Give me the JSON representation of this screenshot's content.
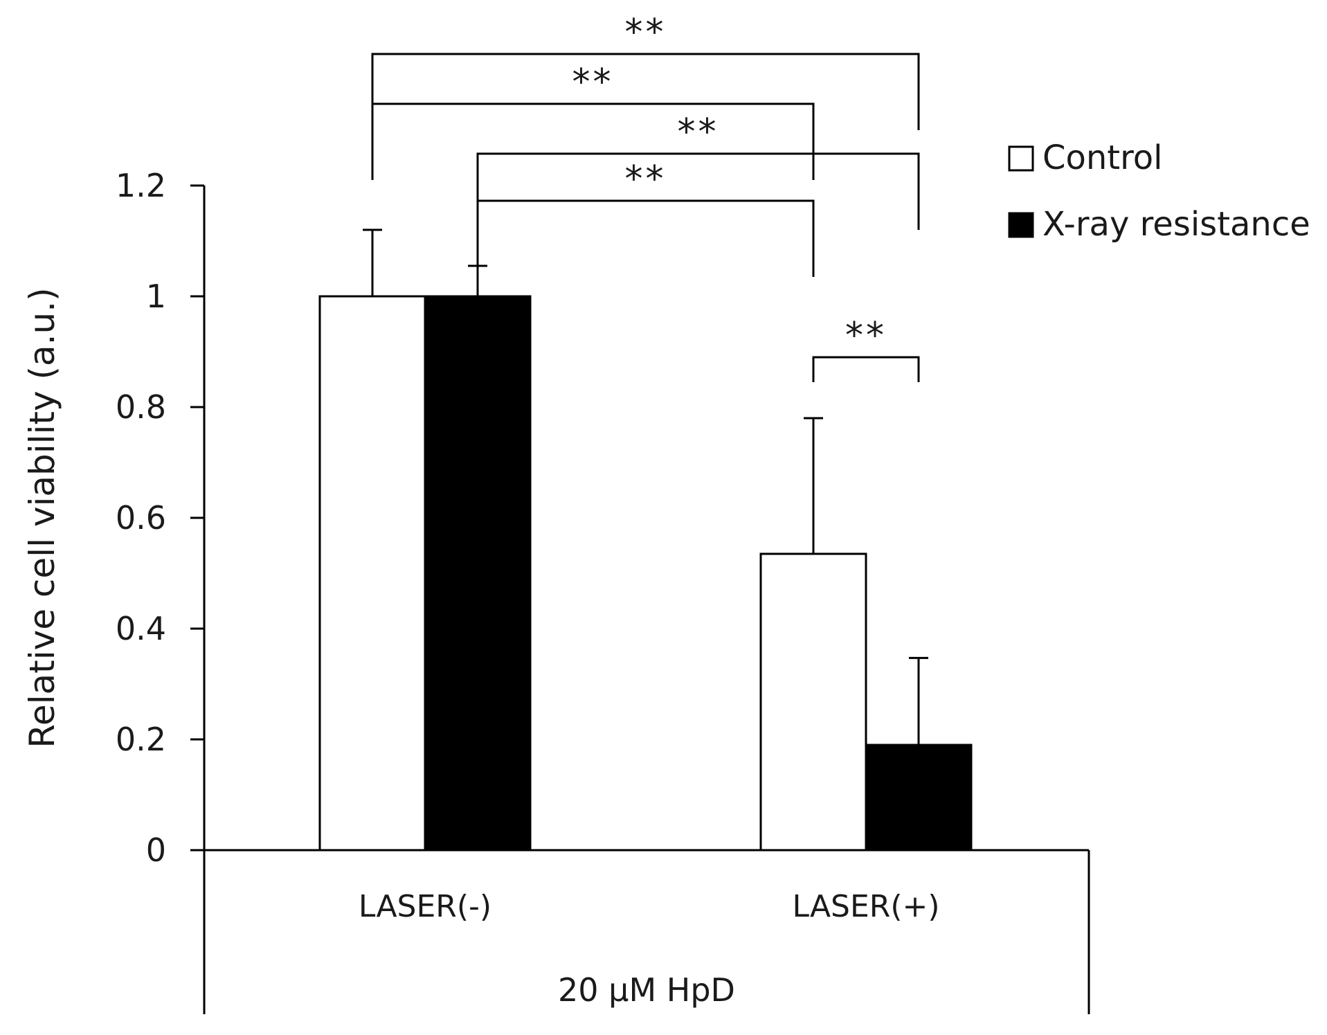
{
  "chart_data": {
    "type": "bar",
    "title": "",
    "ylabel": "Relative cell viability (a.u.)",
    "xlabel": "20 μM HpD",
    "ylim": [
      0,
      1.2
    ],
    "yticks": [
      0,
      0.2,
      0.4,
      0.6,
      0.8,
      1,
      1.2
    ],
    "ytick_labels": [
      "0",
      "0.2",
      "0.4",
      "0.6",
      "0.8",
      "1",
      "1.2"
    ],
    "categories": [
      "LASER(-)",
      "LASER(+)"
    ],
    "group_label": "20 μM HpD",
    "series": [
      {
        "name": "Control",
        "color": "#ffffff",
        "values": [
          1.0,
          0.535
        ],
        "errors": [
          0.12,
          0.245
        ]
      },
      {
        "name": "X-ray resistance",
        "color": "#000000",
        "values": [
          1.0,
          0.19
        ],
        "errors": [
          0.055,
          0.157
        ]
      }
    ],
    "legend": {
      "position": "top-right",
      "items": [
        {
          "label": "Control",
          "color": "#ffffff"
        },
        {
          "label": "X-ray resistance",
          "color": "#000000"
        }
      ]
    },
    "significance": [
      {
        "from": [
          0,
          0
        ],
        "to": [
          1,
          1
        ],
        "label": "**"
      },
      {
        "from": [
          0,
          0
        ],
        "to": [
          1,
          0
        ],
        "label": "**"
      },
      {
        "from": [
          0,
          1
        ],
        "to": [
          1,
          1
        ],
        "label": "**"
      },
      {
        "from": [
          0,
          1
        ],
        "to": [
          1,
          0
        ],
        "label": "**"
      },
      {
        "from": [
          1,
          0
        ],
        "to": [
          1,
          1
        ],
        "label": "**"
      }
    ]
  }
}
